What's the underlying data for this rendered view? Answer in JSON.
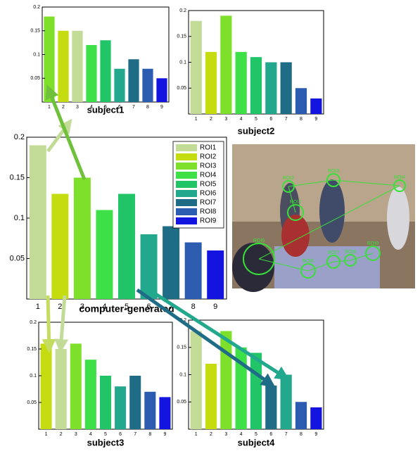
{
  "chart_data": [
    {
      "type": "bar",
      "title": "subject1",
      "categories": [
        "1",
        "2",
        "3",
        "4",
        "5",
        "6",
        "7",
        "8",
        "9"
      ],
      "values": [
        0.18,
        0.15,
        0.15,
        0.12,
        0.13,
        0.07,
        0.09,
        0.07,
        0.05
      ],
      "colors": [
        "#7ee02a",
        "#c4dc10",
        "#c2dc98",
        "#3ee048",
        "#22c468",
        "#22a88c",
        "#1f6c86",
        "#2c5cb0",
        "#1414e0"
      ],
      "ylim": [
        0,
        0.2
      ],
      "yticks": [
        0.05,
        0.1,
        0.15,
        0.2
      ]
    },
    {
      "type": "bar",
      "title": "subject2",
      "categories": [
        "1",
        "2",
        "3",
        "4",
        "5",
        "6",
        "7",
        "8",
        "9"
      ],
      "values": [
        0.18,
        0.12,
        0.19,
        0.12,
        0.11,
        0.1,
        0.1,
        0.05,
        0.03
      ],
      "colors": [
        "#c2dc98",
        "#c4dc10",
        "#7ee02a",
        "#3ee048",
        "#22c468",
        "#22a88c",
        "#1f6c86",
        "#2c5cb0",
        "#1414e0"
      ],
      "ylim": [
        0,
        0.2
      ],
      "yticks": [
        0.05,
        0.1,
        0.15,
        0.2
      ]
    },
    {
      "type": "bar",
      "title": "computer-generated",
      "categories": [
        "1",
        "2",
        "3",
        "4",
        "5",
        "6",
        "7",
        "8",
        "9"
      ],
      "values": [
        0.19,
        0.13,
        0.15,
        0.11,
        0.13,
        0.08,
        0.09,
        0.07,
        0.06
      ],
      "colors": [
        "#c2dc98",
        "#c4dc10",
        "#7ee02a",
        "#3ee048",
        "#22c468",
        "#22a88c",
        "#1f6c86",
        "#2c5cb0",
        "#1414e0"
      ],
      "ylim": [
        0,
        0.2
      ],
      "yticks": [
        0.05,
        0.1,
        0.15,
        0.2
      ],
      "legend": [
        "ROI1",
        "ROI2",
        "ROI3",
        "ROI4",
        "ROI5",
        "ROI6",
        "ROI7",
        "ROI8",
        "ROI9"
      ],
      "legend_colors": [
        "#c2dc98",
        "#c4dc10",
        "#7ee02a",
        "#3ee048",
        "#22c468",
        "#22a88c",
        "#1f6c86",
        "#2c5cb0",
        "#1414e0"
      ],
      "legend_position": "upper right"
    },
    {
      "type": "bar",
      "title": "subject3",
      "categories": [
        "1",
        "2",
        "3",
        "4",
        "5",
        "6",
        "7",
        "8",
        "9"
      ],
      "values": [
        0.16,
        0.15,
        0.16,
        0.13,
        0.1,
        0.08,
        0.1,
        0.07,
        0.06
      ],
      "colors": [
        "#c4dc10",
        "#c2dc98",
        "#7ee02a",
        "#3ee048",
        "#22c468",
        "#22a88c",
        "#1f6c86",
        "#2c5cb0",
        "#1414e0"
      ],
      "ylim": [
        0,
        0.2
      ],
      "yticks": [
        0.05,
        0.1,
        0.15,
        0.2
      ]
    },
    {
      "type": "bar",
      "title": "subject4",
      "categories": [
        "1",
        "2",
        "3",
        "4",
        "5",
        "6",
        "7",
        "8",
        "9"
      ],
      "values": [
        0.18,
        0.12,
        0.18,
        0.15,
        0.14,
        0.08,
        0.1,
        0.05,
        0.04
      ],
      "colors": [
        "#c2dc98",
        "#c4dc10",
        "#7ee02a",
        "#3ee048",
        "#22c468",
        "#1f6c86",
        "#22a88c",
        "#2c5cb0",
        "#1414e0"
      ],
      "ylim": [
        0,
        0.2
      ],
      "yticks": [
        0.05,
        0.1,
        0.15,
        0.2
      ]
    }
  ],
  "photo": {
    "roi_labels": [
      "ROI1",
      "ROI2",
      "ROI3",
      "ROI4",
      "ROI5",
      "ROI6",
      "ROI7",
      "ROI8",
      "ROI9"
    ]
  }
}
